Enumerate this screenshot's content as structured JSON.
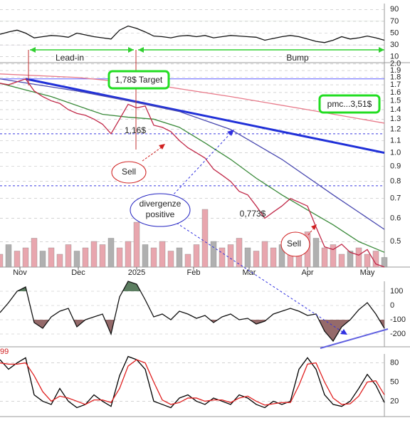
{
  "chart_data": [
    {
      "type": "line",
      "ylim": [
        0,
        100
      ],
      "yticks": [
        90,
        70,
        50,
        30,
        10
      ],
      "x": [
        0,
        3,
        6,
        9,
        12,
        15,
        18,
        21,
        24,
        27,
        30,
        33,
        36,
        39,
        42,
        45,
        48,
        51,
        54,
        57,
        60,
        63,
        66,
        69,
        72,
        75,
        78,
        81,
        84,
        87,
        90,
        93,
        96,
        99,
        102,
        105,
        108,
        111,
        114,
        117,
        120,
        123,
        126,
        129,
        132,
        135
      ],
      "shade": [
        {
          "below": 30,
          "color": "#6a4a7a"
        },
        {
          "above": 70,
          "color": "#4a7a4a"
        }
      ],
      "series": [
        {
          "color": "#111111",
          "values": [
            48,
            52,
            55,
            50,
            42,
            44,
            46,
            45,
            43,
            50,
            47,
            44,
            42,
            40,
            55,
            62,
            58,
            52,
            45,
            44,
            42,
            45,
            46,
            44,
            46,
            42,
            44,
            46,
            45,
            44,
            43,
            38,
            41,
            44,
            46,
            44,
            40,
            36,
            34,
            38,
            44,
            40,
            42,
            45,
            42,
            38
          ]
        }
      ]
    },
    {
      "type": "line",
      "log": true,
      "ylim": [
        0.41,
        2.02
      ],
      "xlim": [
        0,
        135
      ],
      "yticks": [
        {
          "value": 2,
          "label": "2.0"
        },
        1.9,
        1.8,
        1.7,
        1.6,
        1.5,
        1.4,
        1.3,
        1.2,
        1.1,
        {
          "value": 1,
          "label": "1.0"
        },
        0.9,
        0.8,
        0.7,
        0.6,
        0.5
      ],
      "xticks": [
        {
          "value": 7,
          "label": "Nov"
        },
        {
          "value": 27.5,
          "label": "Dec"
        },
        {
          "value": 48,
          "label": "2025"
        },
        {
          "value": 68,
          "label": "Feb"
        },
        {
          "value": 87.5,
          "label": "Mar"
        },
        {
          "value": 108,
          "label": "Apr"
        },
        {
          "value": 129,
          "label": "May"
        }
      ],
      "volume": {
        "color": "#e8a6ae",
        "ylim": [
          0,
          100
        ],
        "values": [
          20,
          35,
          25,
          30,
          45,
          25,
          30,
          20,
          35,
          25,
          30,
          40,
          35,
          45,
          30,
          40,
          70,
          35,
          30,
          40,
          25,
          30,
          20,
          35,
          90,
          40,
          30,
          35,
          45,
          30,
          25,
          40,
          30,
          35,
          25,
          30,
          55,
          45,
          30,
          35,
          20,
          25,
          30,
          20,
          25,
          15
        ]
      },
      "hlines": [
        {
          "value": 1.78,
          "color": "#5a5aff",
          "dash": false
        },
        {
          "value": 1.16,
          "color": "#3a3ae0",
          "dash": true
        },
        {
          "value": 0.773,
          "color": "#3a3ae0",
          "dash": true
        }
      ],
      "trendline": {
        "color": "#2030d8",
        "x": [
          9,
          135
        ],
        "values": [
          1.78,
          1.0
        ]
      },
      "series": [
        {
          "color": "#e87a8a",
          "x": [
            0,
            27,
            54,
            81,
            108,
            135
          ],
          "values": [
            1.85,
            1.8,
            1.7,
            1.55,
            1.4,
            1.26
          ]
        },
        {
          "color": "#4848b0",
          "x": [
            0,
            27,
            45,
            63,
            81,
            99,
            117,
            135
          ],
          "values": [
            1.78,
            1.62,
            1.5,
            1.38,
            1.2,
            0.95,
            0.72,
            0.55
          ]
        },
        {
          "color": "#3a8a3a",
          "x": [
            0,
            18,
            36,
            45,
            54,
            63,
            72,
            81,
            90,
            99,
            108,
            117,
            126,
            135
          ],
          "values": [
            1.72,
            1.55,
            1.35,
            1.32,
            1.3,
            1.22,
            1.08,
            0.95,
            0.82,
            0.72,
            0.64,
            0.57,
            0.5,
            0.46
          ]
        },
        {
          "color": "#c02848",
          "x": [
            0,
            3,
            6,
            9,
            12,
            15,
            18,
            21,
            24,
            27,
            30,
            33,
            36,
            39,
            42,
            45,
            48,
            51,
            54,
            57,
            60,
            63,
            66,
            69,
            72,
            75,
            78,
            81,
            84,
            87,
            90,
            93,
            96,
            99,
            102,
            105,
            108,
            111,
            114,
            117,
            120,
            123,
            126,
            129,
            132,
            135
          ],
          "values": [
            1.72,
            1.7,
            1.74,
            1.78,
            1.62,
            1.55,
            1.5,
            1.47,
            1.4,
            1.36,
            1.34,
            1.3,
            1.25,
            1.16,
            1.3,
            1.46,
            1.42,
            1.44,
            1.24,
            1.22,
            1.18,
            1.1,
            1.04,
            1.0,
            0.96,
            0.88,
            0.84,
            0.8,
            0.74,
            0.72,
            0.66,
            0.6,
            0.63,
            0.66,
            0.7,
            0.68,
            0.66,
            0.56,
            0.48,
            0.47,
            0.49,
            0.46,
            0.45,
            0.47,
            0.42,
            0.41
          ]
        }
      ],
      "annotations": [
        "Lead-in",
        "Bump",
        "1,78$ Target",
        "pmc...3,51$",
        "1,16$",
        "Sell",
        "divergenze",
        "positive",
        "0,773$",
        "Sell"
      ]
    },
    {
      "type": "line",
      "ylim": [
        -290,
        170
      ],
      "yticks": [
        100,
        0,
        -100,
        -200
      ],
      "x": [
        0,
        3,
        6,
        9,
        12,
        15,
        18,
        21,
        24,
        27,
        30,
        33,
        36,
        39,
        42,
        45,
        48,
        51,
        54,
        57,
        60,
        63,
        66,
        69,
        72,
        75,
        78,
        81,
        84,
        87,
        90,
        93,
        96,
        99,
        102,
        105,
        108,
        111,
        114,
        117,
        120,
        123,
        126,
        129,
        132,
        135
      ],
      "shade": [
        {
          "above": 100,
          "color": "#4a7050"
        },
        {
          "below": -100,
          "color": "#8a5a5a"
        }
      ],
      "series": [
        {
          "color": "#111111",
          "values": [
            -50,
            20,
            100,
            130,
            -120,
            -160,
            -80,
            -40,
            -20,
            -150,
            -100,
            -80,
            -60,
            -200,
            60,
            170,
            150,
            40,
            -80,
            -60,
            -100,
            -40,
            -60,
            -90,
            -70,
            -120,
            -80,
            -60,
            -100,
            -90,
            -130,
            -110,
            -60,
            -40,
            -20,
            -40,
            -70,
            -60,
            -180,
            -250,
            -150,
            -100,
            -30,
            20,
            -60,
            -160
          ]
        }
      ]
    },
    {
      "type": "line",
      "ylim": [
        -4,
        94
      ],
      "yticks": [
        80,
        50,
        20
      ],
      "annotation": "99",
      "x": [
        0,
        3,
        6,
        9,
        12,
        15,
        18,
        21,
        24,
        27,
        30,
        33,
        36,
        39,
        42,
        45,
        48,
        51,
        54,
        57,
        60,
        63,
        66,
        69,
        72,
        75,
        78,
        81,
        84,
        87,
        90,
        93,
        96,
        99,
        102,
        105,
        108,
        111,
        114,
        117,
        120,
        123,
        126,
        129,
        132,
        135
      ],
      "shade": [],
      "series": [
        {
          "color": "#000000",
          "values": [
            85,
            70,
            80,
            88,
            30,
            20,
            15,
            40,
            20,
            10,
            15,
            30,
            20,
            12,
            60,
            90,
            85,
            70,
            20,
            15,
            10,
            25,
            30,
            20,
            15,
            25,
            20,
            15,
            30,
            25,
            15,
            10,
            20,
            15,
            20,
            70,
            88,
            70,
            30,
            15,
            12,
            20,
            40,
            62,
            45,
            18
          ]
        },
        {
          "color": "#e02020",
          "values": [
            80,
            78,
            78,
            80,
            60,
            35,
            20,
            28,
            25,
            20,
            15,
            22,
            22,
            18,
            40,
            75,
            85,
            80,
            50,
            22,
            15,
            18,
            25,
            25,
            20,
            22,
            22,
            18,
            25,
            28,
            20,
            14,
            16,
            18,
            18,
            45,
            78,
            80,
            50,
            25,
            15,
            16,
            28,
            50,
            52,
            30
          ]
        }
      ]
    }
  ]
}
